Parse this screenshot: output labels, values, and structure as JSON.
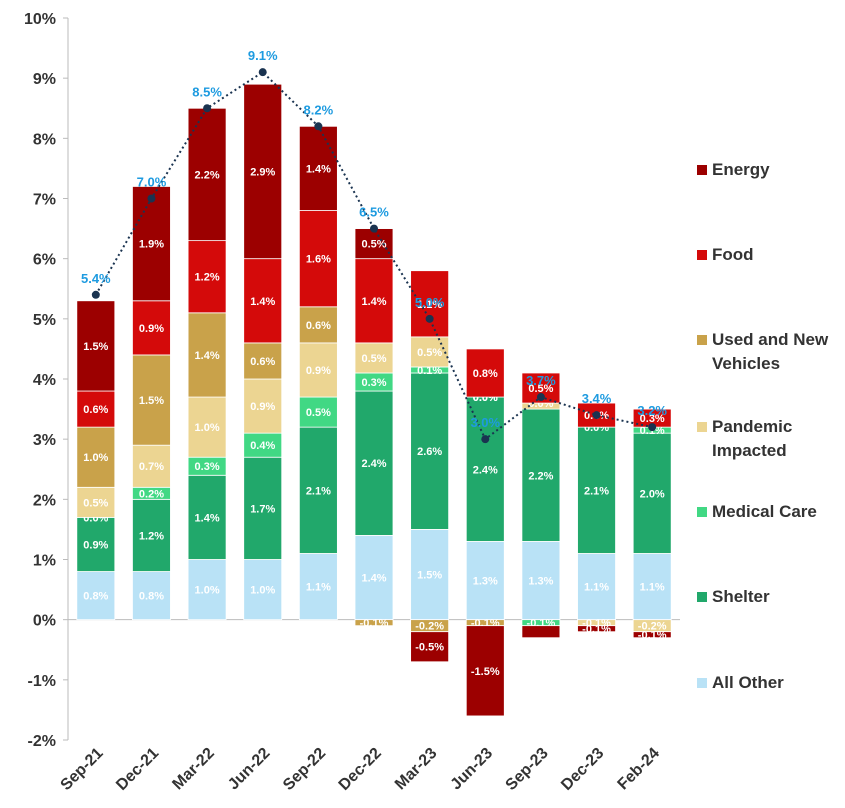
{
  "chart_data": {
    "type": "stacked_bar",
    "categories": [
      "Sep-21",
      "Dec-21",
      "Mar-22",
      "Jun-22",
      "Sep-22",
      "Dec-22",
      "Mar-23",
      "Jun-23",
      "Sep-23",
      "Dec-23",
      "Feb-24"
    ],
    "series": [
      {
        "name": "All Other",
        "color": "#b9e2f6",
        "values": [
          0.8,
          0.8,
          1.0,
          1.0,
          1.1,
          1.4,
          1.5,
          1.3,
          1.3,
          1.1,
          1.1
        ],
        "value_labels": [
          "0.8%",
          "0.8%",
          "1.0%",
          "1.0%",
          "1.1%",
          "1.4%",
          "1.5%",
          "1.3%",
          "1.3%",
          "1.1%",
          "1.1%"
        ]
      },
      {
        "name": "Shelter",
        "color": "#21a86b",
        "values": [
          0.9,
          1.2,
          1.4,
          1.7,
          2.1,
          2.4,
          2.6,
          2.4,
          2.2,
          2.1,
          2.0
        ],
        "value_labels": [
          "0.9%",
          "1.2%",
          "1.4%",
          "1.7%",
          "2.1%",
          "2.4%",
          "2.6%",
          "2.4%",
          "2.2%",
          "2.1%",
          "2.0%"
        ]
      },
      {
        "name": "Medical Care",
        "color": "#41d884",
        "values": [
          0.0,
          0.2,
          0.3,
          0.4,
          0.5,
          0.3,
          0.1,
          0.0,
          -0.1,
          0.0,
          0.1
        ],
        "value_labels": [
          "0.0%",
          "0.2%",
          "0.3%",
          "0.4%",
          "0.5%",
          "0.3%",
          "0.1%",
          "0.0%",
          "-0.1%",
          "0.0%",
          "0.1%"
        ]
      },
      {
        "name": "Pandemic Impacted",
        "color": "#ecd592",
        "values": [
          0.5,
          0.7,
          1.0,
          0.9,
          0.9,
          0.5,
          0.5,
          0.0,
          0.1,
          -0.1,
          -0.2
        ],
        "value_labels": [
          "0.5%",
          "0.7%",
          "1.0%",
          "0.9%",
          "0.9%",
          "0.5%",
          "0.5%",
          "0.0%",
          null,
          "-0.1%",
          "-0.2%"
        ]
      },
      {
        "name": "Used and New Vehicles",
        "color": "#c9a24a",
        "values": [
          1.0,
          1.5,
          1.4,
          0.6,
          0.6,
          -0.1,
          -0.2,
          -0.1,
          0.0,
          0.0,
          0.0
        ],
        "value_labels": [
          "1.0%",
          "1.5%",
          "1.4%",
          "0.6%",
          "0.6%",
          "-0.1%",
          "-0.2%",
          "-0.1%",
          "0.0%",
          null,
          null
        ]
      },
      {
        "name": "Food",
        "color": "#d40a0a",
        "values": [
          0.6,
          0.9,
          1.2,
          1.4,
          1.6,
          1.4,
          1.1,
          0.8,
          0.5,
          0.4,
          0.3
        ],
        "value_labels": [
          "0.6%",
          "0.9%",
          "1.2%",
          "1.4%",
          "1.6%",
          "1.4%",
          "1.1%",
          "0.8%",
          "0.5%",
          "0.4%",
          "0.3%"
        ]
      },
      {
        "name": "Energy",
        "color": "#9c0000",
        "values": [
          1.5,
          1.9,
          2.2,
          2.9,
          1.4,
          0.5,
          -0.5,
          -1.5,
          -0.2,
          -0.1,
          -0.1
        ],
        "value_labels": [
          "1.5%",
          "1.9%",
          "2.2%",
          "2.9%",
          "1.4%",
          "0.5%",
          "-0.5%",
          "-1.5%",
          null,
          "-0.1%",
          "-0.1%"
        ]
      }
    ],
    "totals": {
      "color": "#1a3350",
      "label_color": "#1e9be0",
      "values": [
        5.4,
        7.0,
        8.5,
        9.1,
        8.2,
        6.5,
        5.0,
        3.0,
        3.7,
        3.4,
        3.2
      ],
      "value_labels": [
        "5.4%",
        "7.0%",
        "8.5%",
        "9.1%",
        "8.2%",
        "6.5%",
        "5.0%",
        "3.0%",
        "3.7%",
        "3.4%",
        "3.2%"
      ]
    },
    "ylim": [
      -2,
      10
    ],
    "yticks": [
      {
        "value": -2,
        "label": "-2%"
      },
      {
        "value": -1,
        "label": "-1%"
      },
      {
        "value": 0,
        "label": "0%"
      },
      {
        "value": 1,
        "label": "1%"
      },
      {
        "value": 2,
        "label": "2%"
      },
      {
        "value": 3,
        "label": "3%"
      },
      {
        "value": 4,
        "label": "4%"
      },
      {
        "value": 5,
        "label": "5%"
      },
      {
        "value": 6,
        "label": "6%"
      },
      {
        "value": 7,
        "label": "7%"
      },
      {
        "value": 8,
        "label": "8%"
      },
      {
        "value": 9,
        "label": "9%"
      },
      {
        "value": 10,
        "label": "10%"
      }
    ]
  }
}
